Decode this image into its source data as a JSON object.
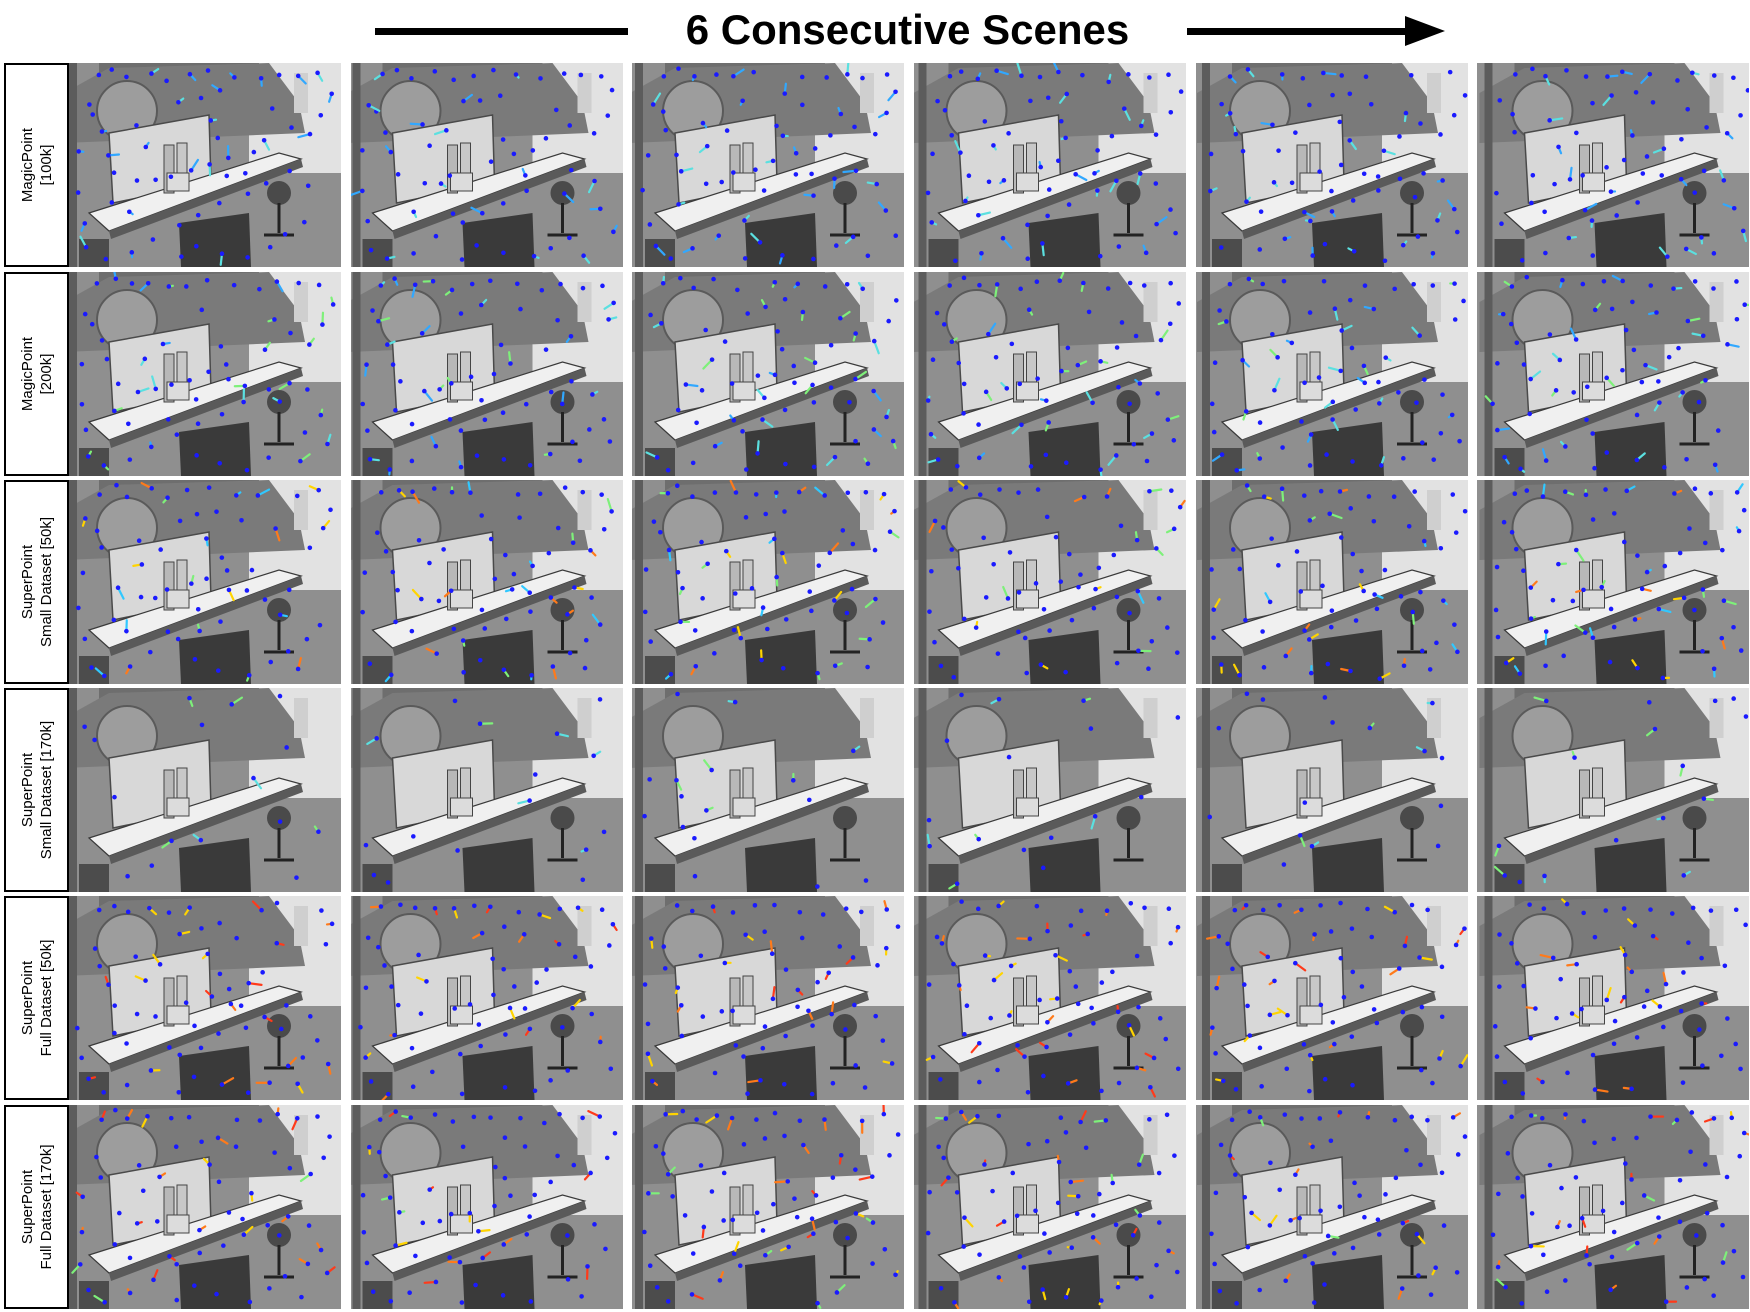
{
  "header": {
    "title": "6 Consecutive Scenes"
  },
  "scene_count": 6,
  "rows": [
    {
      "label_line1": "MagicPoint",
      "label_line2": "[100k]",
      "density": "high",
      "tracks": [
        "#31a8ff",
        "#5be0e0"
      ]
    },
    {
      "label_line1": "MagicPoint",
      "label_line2": "[200k]",
      "density": "high",
      "tracks": [
        "#31a8ff",
        "#5be0e0",
        "#7ef07a"
      ]
    },
    {
      "label_line1": "SuperPoint",
      "label_line2": "Small Dataset [50k]",
      "density": "high",
      "tracks": [
        "#ffd400",
        "#ff7a1a",
        "#7ef07a",
        "#31c8ff"
      ]
    },
    {
      "label_line1": "SuperPoint",
      "label_line2": "Small Dataset [170k]",
      "density": "low",
      "tracks": [
        "#5be0e0",
        "#7ef07a"
      ]
    },
    {
      "label_line1": "SuperPoint",
      "label_line2": "Full Dataset [50k]",
      "density": "high",
      "tracks": [
        "#ff7a1a",
        "#ffd400",
        "#ff3a1a"
      ]
    },
    {
      "label_line1": "SuperPoint",
      "label_line2": "Full Dataset [170k]",
      "density": "high",
      "tracks": [
        "#ff7a1a",
        "#ffd400",
        "#ff3a1a",
        "#7ef07a"
      ]
    }
  ],
  "colors": {
    "keypoint": "#1a1aff",
    "background": "#ffffff"
  }
}
